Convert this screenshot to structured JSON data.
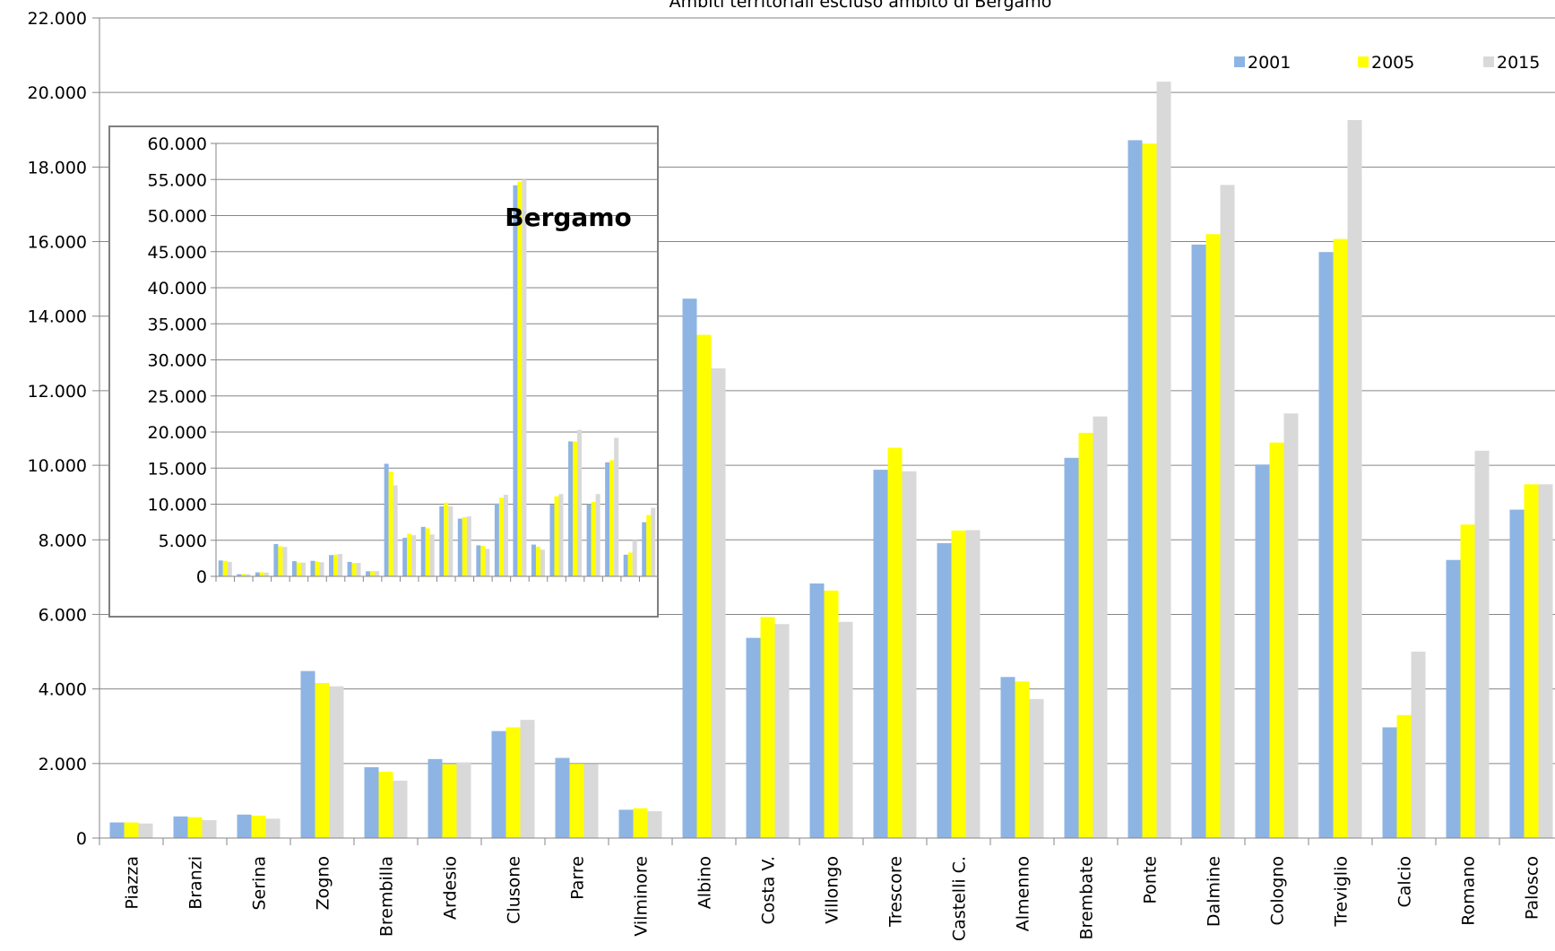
{
  "chart_data": [
    {
      "type": "bar",
      "title": "Ambiti territoriali escluso ambito di Bergamo",
      "categories": [
        "Piazza",
        "Branzi",
        "Serina",
        "Zogno",
        "Brembilla",
        "Ardesio",
        "Clusone",
        "Parre",
        "Vilminore",
        "Albino",
        "Costa V.",
        "Villongo",
        "Trescore",
        "Castelli C.",
        "Almenno",
        "Brembate",
        "Ponte",
        "Dalmine",
        "Cologno",
        "Treviglio",
        "Calcio",
        "Romano",
        "Palosco"
      ],
      "series": [
        {
          "name": "2001",
          "color": "#8EB4E3",
          "values": [
            420,
            580,
            630,
            4480,
            1900,
            2120,
            2870,
            2150,
            760,
            14470,
            5370,
            6830,
            9880,
            7910,
            4320,
            10200,
            18720,
            15920,
            10020,
            15720,
            2970,
            7460,
            8810
          ]
        },
        {
          "name": "2005",
          "color": "#FFFF00",
          "values": [
            420,
            560,
            600,
            4160,
            1780,
            1980,
            2970,
            1990,
            800,
            13500,
            5930,
            6640,
            10470,
            8250,
            4200,
            10870,
            18630,
            16200,
            10610,
            16070,
            3300,
            8410,
            9490
          ]
        },
        {
          "name": "2015",
          "color": "#D9D9D9",
          "values": [
            390,
            480,
            520,
            4070,
            1540,
            2030,
            3170,
            1980,
            720,
            12600,
            5740,
            5800,
            9840,
            8260,
            3730,
            11310,
            20290,
            17520,
            11390,
            19260,
            5000,
            10390,
            9490
          ]
        }
      ],
      "yticks": [
        "0",
        "2.000",
        "4.000",
        "6.000",
        "8.000",
        "10.000",
        "12.000",
        "14.000",
        "16.000",
        "18.000",
        "20.000",
        "22.000"
      ],
      "ylim": [
        0,
        22000
      ],
      "grid": true,
      "legend": "top-right"
    },
    {
      "type": "bar",
      "title": "Bergamo",
      "categories": [
        "Piazza",
        "Branzi",
        "Serina",
        "Zogno",
        "Brembilla",
        "Ardesio",
        "Clusone",
        "Parre",
        "Vilminore",
        "Bergamo",
        "Albino",
        "Costa V.",
        "Villongo",
        "Trescore",
        "Castelli C.",
        "Almenno",
        "Brembate",
        "Ponte",
        "Dalmine",
        "Cologno",
        "Treviglio",
        "Calcio",
        "Romano",
        "Palosco"
      ],
      "series": [
        {
          "name": "2001",
          "values": [
            2200,
            300,
            550,
            4480,
            2100,
            2150,
            2950,
            2000,
            700,
            15600,
            5350,
            6850,
            9700,
            8000,
            4300,
            10100,
            54200,
            4400,
            9930,
            18700,
            10000,
            15800,
            3000,
            7500
          ]
        },
        {
          "name": "2005",
          "values": [
            2150,
            310,
            560,
            4160,
            1900,
            2050,
            3000,
            1850,
            750,
            14500,
            5900,
            6650,
            10200,
            8200,
            4200,
            10900,
            54700,
            4100,
            11100,
            18700,
            10300,
            16100,
            3300,
            8500
          ]
        },
        {
          "name": "2015",
          "values": [
            2000,
            300,
            520,
            4070,
            1900,
            1950,
            3100,
            1850,
            720,
            12600,
            5700,
            5800,
            9700,
            8300,
            3800,
            11300,
            55000,
            3700,
            11400,
            20300,
            11400,
            19200,
            5000,
            9500
          ]
        }
      ],
      "yticks": [
        "0",
        "5.000",
        "10.000",
        "15.000",
        "20.000",
        "25.000",
        "30.000",
        "35.000",
        "40.000",
        "45.000",
        "50.000",
        "55.000",
        "60.000"
      ],
      "ylim": [
        0,
        60000
      ],
      "grid": true
    }
  ]
}
